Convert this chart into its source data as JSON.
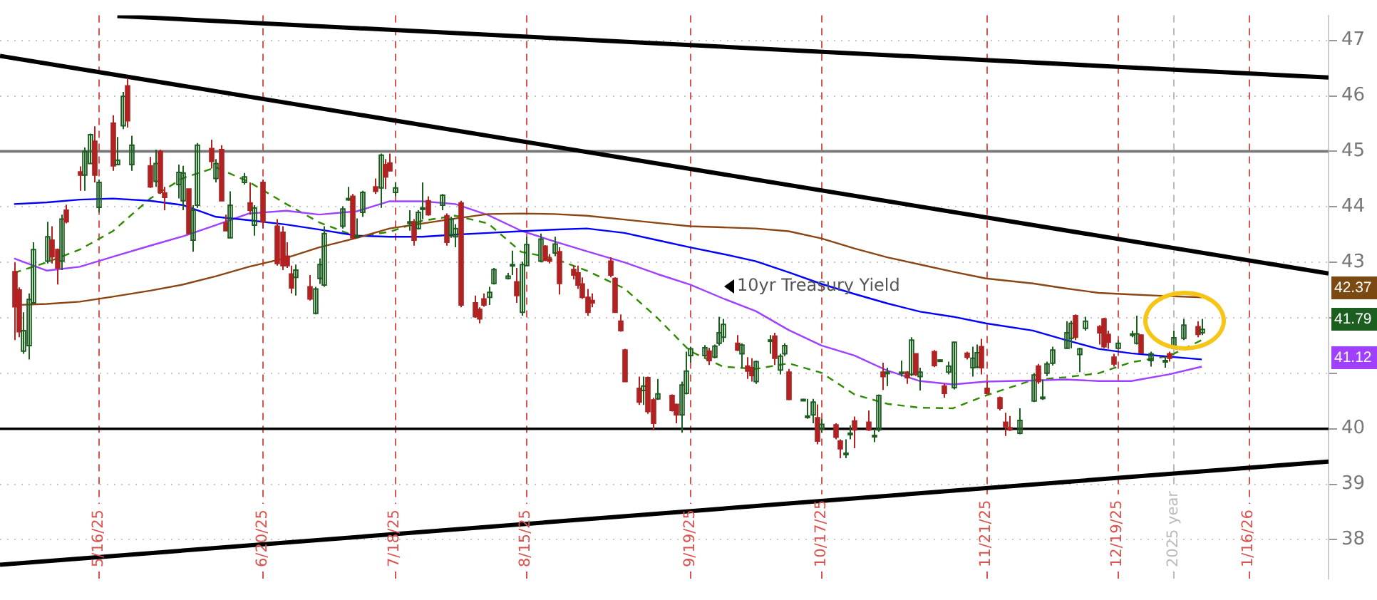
{
  "chart_data": {
    "type": "candlestick",
    "x": [
      "2025-04-28",
      "2025-04-29",
      "2025-04-30",
      "2025-05-01",
      "2025-05-02",
      "2025-05-05",
      "2025-05-06",
      "2025-05-07",
      "2025-05-08",
      "2025-05-09",
      "2025-05-12",
      "2025-05-13",
      "2025-05-14",
      "2025-05-15",
      "2025-05-16",
      "2025-05-19",
      "2025-05-20",
      "2025-05-21",
      "2025-05-22",
      "2025-05-23",
      "2025-05-27",
      "2025-05-28",
      "2025-05-29",
      "2025-05-30",
      "2025-06-02",
      "2025-06-03",
      "2025-06-04",
      "2025-06-05",
      "2025-06-06",
      "2025-06-09",
      "2025-06-10",
      "2025-06-11",
      "2025-06-12",
      "2025-06-13",
      "2025-06-16",
      "2025-06-17",
      "2025-06-18",
      "2025-06-20",
      "2025-06-23",
      "2025-06-24",
      "2025-06-25",
      "2025-06-26",
      "2025-06-27",
      "2025-06-30",
      "2025-07-01",
      "2025-07-02",
      "2025-07-03",
      "2025-07-07",
      "2025-07-08",
      "2025-07-09",
      "2025-07-10",
      "2025-07-11",
      "2025-07-14",
      "2025-07-15",
      "2025-07-16",
      "2025-07-17",
      "2025-07-18",
      "2025-07-21",
      "2025-07-22",
      "2025-07-23",
      "2025-07-24",
      "2025-07-25",
      "2025-07-28",
      "2025-07-29",
      "2025-07-30",
      "2025-07-31",
      "2025-08-01",
      "2025-08-04",
      "2025-08-05",
      "2025-08-06",
      "2025-08-07",
      "2025-08-08",
      "2025-08-11",
      "2025-08-12",
      "2025-08-13",
      "2025-08-14",
      "2025-08-15",
      "2025-08-18",
      "2025-08-19",
      "2025-08-20",
      "2025-08-21",
      "2025-08-22",
      "2025-08-25",
      "2025-08-26",
      "2025-08-27",
      "2025-08-28",
      "2025-08-29",
      "2025-09-02",
      "2025-09-03",
      "2025-09-04",
      "2025-09-05",
      "2025-09-08",
      "2025-09-09",
      "2025-09-10",
      "2025-09-11",
      "2025-09-12",
      "2025-09-15",
      "2025-09-16",
      "2025-09-17",
      "2025-09-18",
      "2025-09-19",
      "2025-09-22",
      "2025-09-23",
      "2025-09-24",
      "2025-09-25",
      "2025-09-26",
      "2025-09-29",
      "2025-09-30",
      "2025-10-01",
      "2025-10-02",
      "2025-10-03",
      "2025-10-06",
      "2025-10-07",
      "2025-10-08",
      "2025-10-09",
      "2025-10-10",
      "2025-10-13",
      "2025-10-14",
      "2025-10-15",
      "2025-10-16",
      "2025-10-17",
      "2025-10-20",
      "2025-10-21",
      "2025-10-22",
      "2025-10-23",
      "2025-10-24",
      "2025-10-27",
      "2025-10-28",
      "2025-10-29",
      "2025-10-30",
      "2025-10-31",
      "2025-11-03",
      "2025-11-04",
      "2025-11-05",
      "2025-11-06",
      "2025-11-07",
      "2025-11-10",
      "2025-11-11",
      "2025-11-12",
      "2025-11-13",
      "2025-11-14",
      "2025-11-17",
      "2025-11-18",
      "2025-11-19",
      "2025-11-20",
      "2025-11-21",
      "2025-11-24",
      "2025-11-25",
      "2025-11-26",
      "2025-11-28",
      "2025-12-01",
      "2025-12-02",
      "2025-12-03",
      "2025-12-04",
      "2025-12-05",
      "2025-12-08",
      "2025-12-09",
      "2025-12-10",
      "2025-12-11",
      "2025-12-12",
      "2025-12-15",
      "2025-12-16",
      "2025-12-17",
      "2025-12-18",
      "2025-12-19",
      "2025-12-22",
      "2025-12-23",
      "2025-12-24",
      "2025-12-26",
      "2025-12-29",
      "2025-12-30",
      "2025-12-31",
      "2026-01-02",
      "2026-01-05",
      "2026-01-06"
    ],
    "ohlc": [
      [
        42.83,
        43.0,
        41.6,
        42.2
      ],
      [
        42.5,
        42.55,
        41.65,
        41.75
      ],
      [
        41.4,
        42.1,
        41.35,
        41.77
      ],
      [
        41.5,
        42.44,
        41.25,
        42.33
      ],
      [
        42.27,
        43.36,
        42.27,
        43.23
      ],
      [
        43.02,
        43.73,
        42.98,
        43.46
      ],
      [
        43.4,
        43.65,
        42.98,
        43.1
      ],
      [
        43.23,
        43.25,
        42.6,
        42.9
      ],
      [
        43.02,
        43.86,
        42.86,
        43.78
      ],
      [
        43.94,
        44.04,
        43.7,
        43.73
      ],
      [
        44.63,
        44.73,
        44.29,
        44.57
      ],
      [
        44.57,
        45.07,
        44.29,
        45.0
      ],
      [
        44.78,
        45.32,
        44.78,
        45.3
      ],
      [
        45.18,
        45.45,
        44.44,
        44.57
      ],
      [
        43.99,
        44.49,
        43.9,
        44.44
      ],
      [
        45.51,
        45.65,
        44.65,
        44.74
      ],
      [
        44.76,
        45.26,
        44.76,
        44.84
      ],
      [
        45.46,
        46.07,
        45.4,
        45.99
      ],
      [
        46.18,
        46.32,
        45.43,
        45.55
      ],
      [
        44.76,
        45.28,
        44.65,
        45.11
      ],
      [
        44.74,
        44.9,
        44.34,
        44.36
      ],
      [
        44.46,
        45.03,
        44.36,
        44.78
      ],
      [
        45.0,
        45.03,
        44.23,
        44.26
      ],
      [
        44.25,
        44.36,
        43.94,
        44.17
      ],
      [
        44.4,
        44.76,
        44.15,
        44.62
      ],
      [
        44.11,
        44.74,
        43.94,
        44.61
      ],
      [
        44.32,
        44.32,
        43.52,
        43.52
      ],
      [
        43.4,
        44.03,
        43.19,
        43.94
      ],
      [
        44.03,
        45.15,
        43.98,
        45.11
      ],
      [
        45.05,
        45.21,
        44.69,
        44.82
      ],
      [
        44.51,
        44.86,
        44.44,
        44.78
      ],
      [
        45.03,
        45.11,
        44.11,
        44.11
      ],
      [
        43.71,
        43.86,
        43.57,
        43.57
      ],
      [
        43.44,
        44.28,
        43.44,
        44.03
      ],
      [
        44.44,
        44.61,
        44.4,
        44.54
      ],
      [
        44.07,
        44.44,
        43.86,
        43.94
      ],
      [
        43.67,
        44.03,
        43.48,
        43.98
      ],
      [
        44.44,
        44.49,
        43.61,
        43.73
      ],
      [
        43.65,
        43.78,
        42.94,
        42.98
      ],
      [
        43.54,
        43.65,
        42.86,
        42.94
      ],
      [
        43.11,
        43.36,
        42.9,
        42.94
      ],
      [
        42.79,
        42.94,
        42.44,
        42.54
      ],
      [
        42.73,
        42.96,
        42.4,
        42.86
      ],
      [
        42.56,
        42.77,
        42.31,
        42.34
      ],
      [
        42.08,
        42.56,
        42.06,
        42.52
      ],
      [
        42.71,
        43.07,
        42.61,
        42.96
      ],
      [
        42.59,
        43.65,
        42.56,
        43.52
      ],
      [
        43.65,
        44.01,
        43.61,
        43.96
      ],
      [
        44.14,
        44.36,
        44.11,
        44.15
      ],
      [
        44.19,
        44.23,
        43.42,
        43.44
      ],
      [
        43.48,
        43.79,
        43.44,
        43.48
      ],
      [
        43.9,
        44.29,
        43.82,
        44.26
      ],
      [
        44.36,
        44.51,
        44.23,
        44.28
      ],
      [
        44.34,
        44.96,
        43.98,
        44.93
      ],
      [
        44.76,
        44.86,
        44.32,
        44.54
      ],
      [
        44.79,
        44.96,
        44.65,
        44.65
      ],
      [
        44.26,
        44.44,
        44.19,
        44.34
      ],
      [
        43.71,
        43.94,
        43.57,
        43.73
      ],
      [
        43.73,
        43.78,
        43.3,
        43.4
      ],
      [
        43.61,
        43.94,
        43.59,
        43.9
      ],
      [
        43.98,
        44.44,
        43.78,
        43.98
      ],
      [
        44.11,
        44.19,
        43.84,
        43.86
      ],
      [
        44.03,
        44.23,
        43.94,
        44.21
      ],
      [
        43.84,
        43.88,
        43.3,
        43.36
      ],
      [
        43.48,
        43.82,
        43.44,
        43.78
      ],
      [
        43.46,
        43.69,
        43.27,
        43.61
      ],
      [
        44.07,
        44.11,
        42.19,
        42.23
      ],
      [
        42.27,
        42.4,
        42.0,
        42.02
      ],
      [
        42.15,
        42.19,
        41.9,
        41.98
      ],
      [
        42.34,
        42.44,
        42.2,
        42.23
      ],
      [
        42.37,
        42.56,
        42.23,
        42.46
      ],
      [
        42.62,
        42.9,
        42.6,
        42.87
      ],
      [
        42.71,
        42.81,
        42.69,
        42.75
      ],
      [
        42.96,
        43.21,
        42.77,
        42.96
      ],
      [
        42.65,
        42.9,
        42.27,
        42.4
      ],
      [
        42.1,
        43.01,
        42.04,
        42.96
      ],
      [
        42.94,
        43.46,
        42.94,
        43.32
      ],
      [
        43.02,
        43.52,
        43.0,
        43.42
      ],
      [
        43.29,
        43.31,
        43.02,
        43.04
      ],
      [
        43.06,
        43.15,
        42.98,
        43.02
      ],
      [
        43.17,
        43.46,
        43.11,
        43.33
      ],
      [
        43.19,
        43.27,
        42.42,
        42.62
      ],
      [
        42.87,
        42.94,
        42.69,
        42.77
      ],
      [
        42.81,
        42.94,
        42.52,
        42.59
      ],
      [
        42.61,
        42.73,
        42.34,
        42.37
      ],
      [
        42.37,
        42.52,
        42.04,
        42.1
      ],
      [
        42.31,
        42.44,
        42.19,
        42.27
      ],
      [
        43.02,
        43.09,
        42.73,
        42.77
      ],
      [
        42.71,
        42.73,
        42.1,
        42.1
      ],
      [
        41.94,
        42.06,
        41.75,
        41.77
      ],
      [
        41.42,
        41.44,
        40.85,
        40.85
      ],
      [
        40.73,
        40.94,
        40.43,
        40.48
      ],
      [
        40.69,
        40.94,
        40.43,
        40.77
      ],
      [
        40.92,
        40.94,
        40.27,
        40.31
      ],
      [
        40.52,
        40.56,
        39.97,
        40.1
      ],
      [
        40.54,
        40.9,
        40.52,
        40.63
      ],
      [
        40.6,
        40.62,
        40.31,
        40.33
      ],
      [
        40.44,
        40.45,
        40.1,
        40.25
      ],
      [
        40.25,
        40.85,
        39.93,
        40.79
      ],
      [
        40.64,
        41.39,
        40.62,
        41.04
      ],
      [
        41.32,
        41.48,
        41.19,
        41.44
      ],
      [
        41.32,
        41.51,
        41.27,
        41.46
      ],
      [
        41.4,
        41.46,
        41.15,
        41.23
      ],
      [
        41.29,
        41.52,
        41.27,
        41.49
      ],
      [
        41.54,
        42.02,
        41.5,
        41.73
      ],
      [
        41.65,
        41.98,
        41.56,
        41.88
      ],
      [
        41.54,
        41.69,
        41.4,
        41.42
      ],
      [
        41.35,
        41.54,
        41.1,
        41.51
      ],
      [
        41.13,
        41.29,
        40.9,
        41.04
      ],
      [
        41.1,
        41.27,
        40.85,
        40.96
      ],
      [
        40.85,
        41.23,
        40.81,
        41.21
      ],
      [
        41.6,
        41.69,
        41.35,
        41.6
      ],
      [
        41.67,
        41.73,
        41.15,
        41.27
      ],
      [
        41.06,
        41.35,
        40.98,
        41.31
      ],
      [
        41.35,
        41.54,
        41.31,
        41.5
      ],
      [
        41.02,
        41.08,
        40.52,
        40.53
      ],
      [
        40.53,
        40.54,
        40.5,
        40.53
      ],
      [
        40.21,
        40.54,
        40.18,
        40.23
      ],
      [
        40.25,
        40.54,
        40.1,
        40.48
      ],
      [
        40.2,
        40.44,
        39.72,
        39.78
      ],
      [
        40.0,
        40.18,
        39.93,
        40.08
      ],
      [
        40.07,
        40.1,
        39.81,
        39.85
      ],
      [
        39.78,
        39.81,
        39.47,
        39.64
      ],
      [
        39.54,
        39.81,
        39.47,
        39.56
      ],
      [
        39.9,
        40.06,
        39.81,
        39.92
      ],
      [
        40.14,
        40.22,
        39.65,
        39.98
      ],
      [
        40.12,
        40.33,
        39.96,
        39.98
      ],
      [
        39.88,
        40.0,
        39.76,
        39.88
      ],
      [
        39.98,
        40.62,
        39.95,
        40.6
      ],
      [
        41.02,
        41.19,
        40.7,
        40.94
      ],
      [
        41.02,
        41.1,
        40.77,
        41.02
      ],
      [
        41.02,
        41.23,
        40.94,
        41.02
      ],
      [
        41.02,
        41.04,
        40.81,
        40.92
      ],
      [
        40.98,
        41.65,
        40.95,
        41.6
      ],
      [
        41.35,
        41.35,
        40.95,
        40.98
      ],
      [
        40.94,
        41.1,
        40.69,
        41.02
      ],
      [
        41.39,
        41.42,
        41.11,
        41.14
      ],
      [
        41.24,
        41.25,
        41.23,
        41.24
      ],
      [
        40.77,
        40.81,
        40.56,
        40.64
      ],
      [
        41.02,
        41.21,
        40.98,
        41.13
      ],
      [
        40.74,
        41.57,
        40.71,
        41.56
      ],
      [
        41.36,
        41.39,
        41.25,
        41.29
      ],
      [
        41.1,
        41.48,
        40.94,
        41.27
      ],
      [
        41.11,
        41.52,
        41.09,
        41.37
      ],
      [
        41.48,
        41.62,
        40.98,
        41.1
      ],
      [
        40.73,
        40.85,
        40.62,
        40.64
      ],
      [
        40.56,
        40.58,
        40.33,
        40.37
      ],
      [
        40.12,
        40.29,
        39.87,
        40.04
      ],
      [
        40.02,
        40.23,
        39.96,
        39.98
      ],
      [
        39.92,
        40.37,
        39.9,
        40.15
      ],
      [
        40.5,
        41.0,
        40.48,
        40.97
      ],
      [
        41.13,
        41.17,
        40.81,
        40.85
      ],
      [
        40.55,
        40.89,
        40.52,
        40.57
      ],
      [
        41.0,
        41.21,
        40.95,
        41.17
      ],
      [
        41.18,
        41.48,
        41.14,
        41.42
      ],
      [
        41.45,
        41.94,
        41.44,
        41.73
      ],
      [
        41.63,
        41.95,
        41.45,
        41.9
      ],
      [
        42.04,
        42.06,
        41.6,
        41.65
      ],
      [
        41.34,
        41.46,
        41.02,
        41.44
      ],
      [
        41.81,
        42.02,
        41.77,
        41.94
      ],
      [
        41.84,
        41.87,
        41.52,
        41.73
      ],
      [
        41.98,
        42.0,
        41.45,
        41.48
      ],
      [
        41.7,
        41.77,
        41.44,
        41.56
      ],
      [
        41.29,
        41.35,
        41.12,
        41.17
      ],
      [
        41.45,
        41.6,
        41.44,
        41.54
      ],
      [
        41.69,
        41.77,
        41.65,
        41.71
      ],
      [
        41.54,
        42.04,
        41.52,
        41.71
      ],
      [
        41.69,
        41.7,
        41.35,
        41.37
      ],
      [
        41.23,
        41.39,
        41.12,
        41.35
      ],
      [
        41.23,
        41.31,
        41.1,
        41.23
      ],
      [
        41.35,
        41.39,
        41.21,
        41.27
      ],
      [
        41.45,
        41.77,
        41.44,
        41.64
      ],
      [
        41.63,
        41.98,
        41.6,
        41.87
      ],
      [
        41.84,
        41.94,
        41.65,
        41.7
      ],
      [
        41.73,
        41.98,
        41.69,
        41.79
      ]
    ],
    "series": [
      {
        "type": "line",
        "color": "#8b4513",
        "x": [
          "2025-04-28",
          "2025-05-05",
          "2025-05-12",
          "2025-05-19",
          "2025-05-27",
          "2025-06-03",
          "2025-06-10",
          "2025-06-17",
          "2025-06-25",
          "2025-07-02",
          "2025-07-10",
          "2025-07-17",
          "2025-07-24",
          "2025-07-31",
          "2025-08-07",
          "2025-08-14",
          "2025-08-21",
          "2025-08-28",
          "2025-09-05",
          "2025-09-12",
          "2025-09-19",
          "2025-09-26",
          "2025-10-03",
          "2025-10-10",
          "2025-10-17",
          "2025-10-24",
          "2025-10-31",
          "2025-11-07",
          "2025-11-14",
          "2025-11-21",
          "2025-12-01",
          "2025-12-08",
          "2025-12-15",
          "2025-12-22",
          "2025-12-30",
          "2026-01-06"
        ],
        "values": [
          42.23,
          42.25,
          42.29,
          42.38,
          42.49,
          42.6,
          42.75,
          42.92,
          43.08,
          43.27,
          43.44,
          43.61,
          43.7,
          43.79,
          43.87,
          43.88,
          43.87,
          43.84,
          43.77,
          43.71,
          43.65,
          43.63,
          43.61,
          43.56,
          43.43,
          43.25,
          43.09,
          42.96,
          42.83,
          42.71,
          42.62,
          42.53,
          42.45,
          42.42,
          42.39,
          42.37
        ]
      },
      {
        "type": "line",
        "color": "#0000ff",
        "x": [
          "2025-04-28",
          "2025-05-05",
          "2025-05-12",
          "2025-05-19",
          "2025-05-27",
          "2025-06-03",
          "2025-06-10",
          "2025-06-17",
          "2025-06-25",
          "2025-07-02",
          "2025-07-10",
          "2025-07-17",
          "2025-07-24",
          "2025-07-31",
          "2025-08-07",
          "2025-08-14",
          "2025-08-21",
          "2025-08-28",
          "2025-09-05",
          "2025-09-12",
          "2025-09-19",
          "2025-09-26",
          "2025-10-03",
          "2025-10-10",
          "2025-10-17",
          "2025-10-24",
          "2025-10-31",
          "2025-11-07",
          "2025-11-14",
          "2025-11-21",
          "2025-12-01",
          "2025-12-08",
          "2025-12-15",
          "2025-12-22",
          "2025-12-30",
          "2026-01-06"
        ],
        "values": [
          44.05,
          44.08,
          44.13,
          44.15,
          44.11,
          44.03,
          43.82,
          43.76,
          43.68,
          43.59,
          43.48,
          43.46,
          43.46,
          43.5,
          43.53,
          43.56,
          43.59,
          43.61,
          43.53,
          43.4,
          43.27,
          43.15,
          43.02,
          42.82,
          42.61,
          42.43,
          42.26,
          42.11,
          42.02,
          41.9,
          41.77,
          41.6,
          41.44,
          41.36,
          41.3,
          41.25
        ]
      },
      {
        "type": "line",
        "color": "#a040ff",
        "x": [
          "2025-04-28",
          "2025-05-05",
          "2025-05-12",
          "2025-05-19",
          "2025-05-27",
          "2025-06-03",
          "2025-06-10",
          "2025-06-17",
          "2025-06-25",
          "2025-07-02",
          "2025-07-10",
          "2025-07-17",
          "2025-07-24",
          "2025-07-31",
          "2025-08-07",
          "2025-08-14",
          "2025-08-21",
          "2025-08-28",
          "2025-09-05",
          "2025-09-12",
          "2025-09-19",
          "2025-09-26",
          "2025-10-03",
          "2025-10-10",
          "2025-10-17",
          "2025-10-24",
          "2025-10-31",
          "2025-11-07",
          "2025-11-14",
          "2025-11-21",
          "2025-12-01",
          "2025-12-08",
          "2025-12-15",
          "2025-12-22",
          "2025-12-30",
          "2026-01-06"
        ],
        "values": [
          43.07,
          42.85,
          42.92,
          43.1,
          43.3,
          43.47,
          43.67,
          43.88,
          43.93,
          43.86,
          43.92,
          44.1,
          44.1,
          44.05,
          43.85,
          43.57,
          43.38,
          43.2,
          43.0,
          42.79,
          42.6,
          42.35,
          42.12,
          41.78,
          41.5,
          41.32,
          41.05,
          40.86,
          40.8,
          40.85,
          40.87,
          40.89,
          40.86,
          40.86,
          40.98,
          41.12
        ]
      },
      {
        "type": "line",
        "color": "#2e8b00",
        "line_style": "dashed",
        "x": [
          "2025-04-28",
          "2025-05-05",
          "2025-05-12",
          "2025-05-19",
          "2025-05-27",
          "2025-06-03",
          "2025-06-10",
          "2025-06-17",
          "2025-06-25",
          "2025-07-02",
          "2025-07-10",
          "2025-07-17",
          "2025-07-24",
          "2025-07-31",
          "2025-08-07",
          "2025-08-14",
          "2025-08-21",
          "2025-08-28",
          "2025-09-05",
          "2025-09-12",
          "2025-09-19",
          "2025-09-26",
          "2025-10-03",
          "2025-10-10",
          "2025-10-17",
          "2025-10-24",
          "2025-10-31",
          "2025-11-07",
          "2025-11-14",
          "2025-11-21",
          "2025-12-01",
          "2025-12-08",
          "2025-12-15",
          "2025-12-22",
          "2025-12-30",
          "2026-01-06"
        ],
        "values": [
          42.81,
          43.0,
          43.23,
          43.56,
          44.15,
          44.52,
          44.71,
          44.45,
          44.05,
          43.72,
          43.46,
          43.55,
          43.75,
          43.84,
          43.7,
          43.19,
          43.07,
          42.85,
          42.53,
          42.0,
          41.4,
          41.12,
          41.08,
          41.18,
          41.01,
          40.62,
          40.45,
          40.38,
          40.37,
          40.6,
          40.88,
          40.93,
          41.0,
          41.2,
          41.31,
          41.6
        ]
      },
      {
        "type": "line",
        "color": "#000000",
        "x": [
          "2025-05-20",
          "2026-02-02"
        ],
        "values": [
          47.44,
          46.33
        ]
      },
      {
        "type": "line",
        "color": "#000000",
        "x": [
          "2025-04-25",
          "2026-02-02"
        ],
        "values": [
          46.72,
          42.8
        ]
      },
      {
        "type": "line",
        "color": "#000000",
        "x": [
          "2025-04-25",
          "2026-02-02"
        ],
        "values": [
          37.55,
          39.41
        ]
      }
    ],
    "ref_lines": [
      {
        "axis": "x",
        "value": "2025-05-16",
        "color": "#d9534f",
        "line_style": "dashed"
      },
      {
        "axis": "x",
        "value": "2025-06-20",
        "color": "#d9534f",
        "line_style": "dashed"
      },
      {
        "axis": "x",
        "value": "2025-07-18",
        "color": "#d9534f",
        "line_style": "dashed"
      },
      {
        "axis": "x",
        "value": "2025-08-15",
        "color": "#d9534f",
        "line_style": "dashed"
      },
      {
        "axis": "x",
        "value": "2025-09-19",
        "color": "#d9534f",
        "line_style": "dashed"
      },
      {
        "axis": "x",
        "value": "2025-10-17",
        "color": "#d9534f",
        "line_style": "dashed"
      },
      {
        "axis": "x",
        "value": "2025-11-21",
        "color": "#d9534f",
        "line_style": "dashed"
      },
      {
        "axis": "x",
        "value": "2025-12-19",
        "color": "#d9534f",
        "line_style": "dashed"
      },
      {
        "axis": "x",
        "value": "2025-12-31",
        "color": "#bbbbbb",
        "line_style": "dashed"
      },
      {
        "axis": "x",
        "value": "2026-01-16",
        "color": "#d9534f",
        "line_style": "dashed"
      },
      {
        "axis": "y",
        "value": 45,
        "color": "#777777",
        "line_style": "solid"
      },
      {
        "axis": "y",
        "value": 40,
        "color": "#000000",
        "line_style": "solid"
      }
    ],
    "annotations": [
      "10yr Treasury Yield",
      "42.37",
      "41.79",
      "41.12"
    ],
    "xlim": [
      "2025-04-25",
      "2026-02-02"
    ],
    "xticks": [
      {
        "value": "2025-05-16",
        "label": "5/16/25"
      },
      {
        "value": "2025-06-20",
        "label": "6/20/25"
      },
      {
        "value": "2025-07-18",
        "label": "7/18/25"
      },
      {
        "value": "2025-08-15",
        "label": "8/15/25"
      },
      {
        "value": "2025-09-19",
        "label": "9/19/25"
      },
      {
        "value": "2025-10-17",
        "label": "10/17/25"
      },
      {
        "value": "2025-11-21",
        "label": "11/21/25"
      },
      {
        "value": "2025-12-19",
        "label": "12/19/25"
      },
      {
        "value": "2025-12-31",
        "label": "2025 year"
      },
      {
        "value": "2026-01-16",
        "label": "1/16/26"
      }
    ],
    "ylim": [
      37.3,
      47.45
    ],
    "yticks": [
      38,
      39,
      40,
      {
        "value": 41,
        "label": null
      },
      {
        "value": 42,
        "label": null
      },
      43,
      44,
      45,
      46,
      47
    ],
    "grid": "y"
  }
}
